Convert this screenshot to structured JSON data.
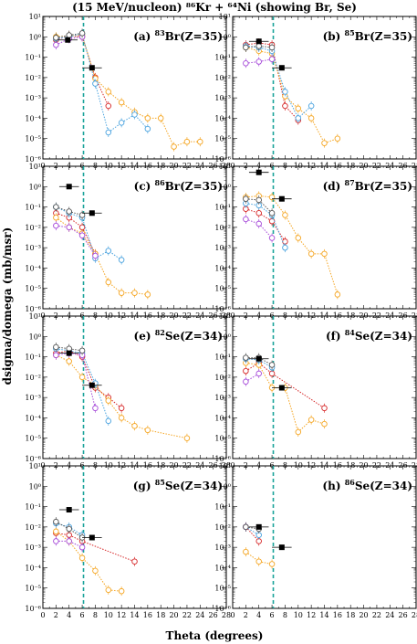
{
  "chart_data": {
    "type": "scatter",
    "title": "(15 MeV/nucleon) ⁸⁶Kr + ⁶⁴Ni (showing Br, Se)",
    "xlabel": "Theta (degrees)",
    "ylabel": "dsigma/domega (mb/msr)",
    "xlim": [
      0,
      28
    ],
    "ylim_log10": [
      -6,
      1
    ],
    "x_ticks": [
      "0",
      "2",
      "4",
      "6",
      "8",
      "10",
      "12",
      "14",
      "16",
      "18",
      "20",
      "22",
      "24",
      "26",
      "28"
    ],
    "y_ticks": [
      "10⁻⁶",
      "10⁻⁵",
      "10⁻⁴",
      "10⁻³",
      "10⁻²",
      "10⁻¹",
      "10⁰",
      "10¹"
    ],
    "grazing_angle_deg": 6.2,
    "series_colors": {
      "red": "#d62728",
      "orange": "#f5a623",
      "blue": "#4aa3df",
      "purple": "#a64ad9",
      "gray": "#555555",
      "black": "#000000"
    },
    "panels": [
      {
        "id": "a",
        "label_prefix": "(a) ",
        "mass": "83",
        "element": "Br(Z=35)",
        "series": [
          {
            "color": "red",
            "x": [
              2,
              4,
              6,
              8,
              10
            ],
            "y": [
              0.7,
              1.1,
              1.0,
              0.01,
              0.0004
            ]
          },
          {
            "color": "orange",
            "x": [
              2,
              4,
              6,
              8,
              10,
              12,
              14,
              16,
              18,
              20,
              22,
              24
            ],
            "y": [
              1.0,
              1.1,
              1.2,
              0.009,
              0.002,
              0.0006,
              0.0002,
              0.0001,
              0.0001,
              4e-06,
              7e-06,
              7e-06
            ]
          },
          {
            "color": "blue",
            "x": [
              2,
              4,
              6,
              8,
              10,
              12,
              14,
              16
            ],
            "y": [
              0.8,
              1.0,
              1.4,
              0.005,
              2e-05,
              6e-05,
              0.00015,
              3e-05
            ]
          },
          {
            "color": "purple",
            "x": [
              2,
              4,
              6
            ],
            "y": [
              0.4,
              0.8,
              1.0
            ]
          },
          {
            "color": "gray",
            "x": [
              2,
              4,
              6
            ],
            "y": [
              0.9,
              1.2,
              1.5
            ]
          },
          {
            "color": "black",
            "x": [
              3.8,
              7.5
            ],
            "y": [
              0.7,
              0.03
            ],
            "xerr": [
              1.5,
              1.5
            ]
          }
        ]
      },
      {
        "id": "b",
        "label_prefix": "(b) ",
        "mass": "85",
        "element": "Br(Z=35)",
        "series": [
          {
            "color": "red",
            "x": [
              2,
              4,
              6,
              8,
              10
            ],
            "y": [
              0.4,
              0.5,
              0.4,
              0.0004,
              8e-05
            ]
          },
          {
            "color": "orange",
            "x": [
              2,
              4,
              6,
              8,
              10,
              12,
              14,
              16
            ],
            "y": [
              0.3,
              0.2,
              0.15,
              0.0012,
              0.0003,
              0.0001,
              6e-06,
              1e-05
            ]
          },
          {
            "color": "blue",
            "x": [
              2,
              4,
              6,
              8,
              10,
              12
            ],
            "y": [
              0.35,
              0.3,
              0.2,
              0.002,
              0.0001,
              0.0004
            ]
          },
          {
            "color": "purple",
            "x": [
              2,
              4,
              6
            ],
            "y": [
              0.05,
              0.06,
              0.08
            ]
          },
          {
            "color": "gray",
            "x": [
              2,
              4,
              6
            ],
            "y": [
              0.3,
              0.35,
              0.3
            ]
          },
          {
            "color": "black",
            "x": [
              4,
              7.5
            ],
            "y": [
              0.6,
              0.03
            ],
            "xerr": [
              1.5,
              1.5
            ]
          }
        ]
      },
      {
        "id": "c",
        "label_prefix": "(c) ",
        "mass": "86",
        "element": "Br(Z=35)",
        "series": [
          {
            "color": "red",
            "x": [
              2,
              4,
              6,
              8
            ],
            "y": [
              0.05,
              0.03,
              0.01,
              0.0005
            ]
          },
          {
            "color": "orange",
            "x": [
              2,
              4,
              6,
              8,
              10,
              12,
              14,
              16
            ],
            "y": [
              0.03,
              0.01,
              0.005,
              0.0005,
              2e-05,
              6e-06,
              6e-06,
              5e-06
            ]
          },
          {
            "color": "blue",
            "x": [
              2,
              4,
              6,
              8,
              10,
              12
            ],
            "y": [
              0.1,
              0.05,
              0.03,
              0.0003,
              0.0007,
              0.00025
            ]
          },
          {
            "color": "purple",
            "x": [
              2,
              4,
              6,
              8
            ],
            "y": [
              0.012,
              0.01,
              0.004,
              0.0004
            ]
          },
          {
            "color": "gray",
            "x": [
              2,
              4,
              6
            ],
            "y": [
              0.1,
              0.06,
              0.04
            ]
          },
          {
            "color": "black",
            "x": [
              4,
              7.5
            ],
            "y": [
              1.0,
              0.05
            ],
            "xerr": [
              1.5,
              1.5
            ]
          }
        ]
      },
      {
        "id": "d",
        "label_prefix": "(d) ",
        "mass": "87",
        "element": "Br(Z=35)",
        "series": [
          {
            "color": "red",
            "x": [
              2,
              4,
              6,
              8
            ],
            "y": [
              0.08,
              0.05,
              0.02,
              0.002
            ]
          },
          {
            "color": "orange",
            "x": [
              2,
              4,
              6,
              8,
              10,
              12,
              14,
              16
            ],
            "y": [
              0.3,
              0.35,
              0.3,
              0.04,
              0.003,
              0.0005,
              0.0005,
              5e-06
            ]
          },
          {
            "color": "blue",
            "x": [
              2,
              4,
              6,
              8
            ],
            "y": [
              0.15,
              0.12,
              0.04,
              0.001
            ]
          },
          {
            "color": "purple",
            "x": [
              2,
              4,
              6
            ],
            "y": [
              0.025,
              0.015,
              0.003
            ]
          },
          {
            "color": "gray",
            "x": [
              2,
              4,
              6
            ],
            "y": [
              0.25,
              0.22,
              0.05
            ]
          },
          {
            "color": "black",
            "x": [
              4,
              7.5
            ],
            "y": [
              5.0,
              0.25
            ],
            "xerr": [
              1.5,
              1.5
            ]
          }
        ]
      },
      {
        "id": "e",
        "label_prefix": "(e) ",
        "mass": "82",
        "element": "Se(Z=34)",
        "series": [
          {
            "color": "red",
            "x": [
              2,
              4,
              6,
              8,
              10,
              12
            ],
            "y": [
              0.15,
              0.2,
              0.1,
              0.003,
              0.001,
              0.0003
            ]
          },
          {
            "color": "orange",
            "x": [
              2,
              4,
              6,
              8,
              10,
              12,
              14,
              16,
              22
            ],
            "y": [
              0.12,
              0.06,
              0.01,
              0.004,
              0.0007,
              0.0001,
              4e-05,
              2.5e-05,
              1e-05
            ]
          },
          {
            "color": "blue",
            "x": [
              2,
              4,
              6,
              8,
              10
            ],
            "y": [
              0.25,
              0.2,
              0.15,
              0.005,
              7e-05
            ]
          },
          {
            "color": "purple",
            "x": [
              2,
              4,
              6,
              8
            ],
            "y": [
              0.12,
              0.15,
              0.12,
              0.0003
            ]
          },
          {
            "color": "gray",
            "x": [
              2,
              4,
              6
            ],
            "y": [
              0.3,
              0.25,
              0.2
            ]
          },
          {
            "color": "black",
            "x": [
              4,
              7.5
            ],
            "y": [
              0.15,
              0.004
            ],
            "xerr": [
              1.5,
              1.5
            ]
          }
        ]
      },
      {
        "id": "f",
        "label_prefix": "(f) ",
        "mass": "84",
        "element": "Se(Z=34)",
        "series": [
          {
            "color": "red",
            "x": [
              2,
              4,
              6,
              14
            ],
            "y": [
              0.02,
              0.05,
              0.015,
              0.0003
            ]
          },
          {
            "color": "orange",
            "x": [
              2,
              4,
              6,
              8,
              10,
              12,
              14
            ],
            "y": [
              0.05,
              0.04,
              0.003,
              0.003,
              2e-05,
              8e-05,
              5e-05
            ]
          },
          {
            "color": "blue",
            "x": [
              2,
              4,
              6
            ],
            "y": [
              0.08,
              0.07,
              0.03
            ]
          },
          {
            "color": "purple",
            "x": [
              2,
              4
            ],
            "y": [
              0.006,
              0.015
            ]
          },
          {
            "color": "gray",
            "x": [
              2,
              4,
              6
            ],
            "y": [
              0.09,
              0.09,
              0.04
            ]
          },
          {
            "color": "black",
            "x": [
              4,
              7.5
            ],
            "y": [
              0.08,
              0.003
            ],
            "xerr": [
              1.5,
              1.5
            ]
          }
        ]
      },
      {
        "id": "g",
        "label_prefix": "(g) ",
        "mass": "85",
        "element": "Se(Z=34)",
        "series": [
          {
            "color": "red",
            "x": [
              2,
              4,
              6,
              14
            ],
            "y": [
              0.005,
              0.004,
              0.002,
              0.0002
            ]
          },
          {
            "color": "orange",
            "x": [
              2,
              4,
              6,
              8,
              10,
              12
            ],
            "y": [
              0.006,
              0.002,
              0.0003,
              7e-05,
              8e-06,
              7e-06
            ]
          },
          {
            "color": "blue",
            "x": [
              2,
              4,
              6
            ],
            "y": [
              0.015,
              0.01,
              0.004
            ]
          },
          {
            "color": "purple",
            "x": [
              2,
              4,
              6
            ],
            "y": [
              0.002,
              0.002,
              0.001
            ]
          },
          {
            "color": "gray",
            "x": [
              2,
              4,
              6
            ],
            "y": [
              0.018,
              0.008,
              0.003
            ]
          },
          {
            "color": "black",
            "x": [
              4,
              7.5
            ],
            "y": [
              0.07,
              0.003
            ],
            "xerr": [
              1.5,
              1.5
            ]
          }
        ]
      },
      {
        "id": "h",
        "label_prefix": "(h) ",
        "mass": "86",
        "element": "Se(Z=34)",
        "series": [
          {
            "color": "red",
            "x": [
              2,
              4
            ],
            "y": [
              0.01,
              0.002
            ]
          },
          {
            "color": "orange",
            "x": [
              2,
              4,
              6
            ],
            "y": [
              0.0006,
              0.0002,
              0.00015
            ]
          },
          {
            "color": "blue",
            "x": [
              2,
              4
            ],
            "y": [
              0.01,
              0.004
            ]
          },
          {
            "color": "purple",
            "x": [
              2
            ],
            "y": [
              0.01
            ]
          },
          {
            "color": "gray",
            "x": [
              2,
              4
            ],
            "y": [
              0.01,
              0.008
            ]
          },
          {
            "color": "black",
            "x": [
              4,
              7.5
            ],
            "y": [
              0.01,
              0.001
            ],
            "xerr": [
              1.5,
              1.5
            ]
          }
        ]
      }
    ]
  }
}
